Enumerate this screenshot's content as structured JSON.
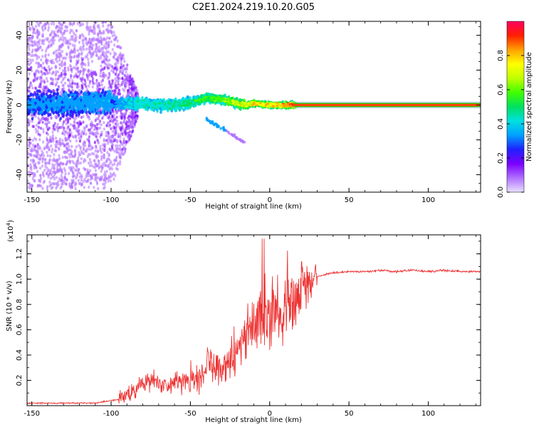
{
  "figure_title": "C2E1.2024.219.10.20.G05",
  "chart_data": [
    {
      "type": "heatmap",
      "xlabel": "Height of straight line (km)",
      "ylabel": "Frequency (Hz)",
      "xlim": [
        -153,
        133
      ],
      "ylim": [
        -50,
        48
      ],
      "xticks": [
        -150,
        -100,
        -50,
        0,
        50,
        100
      ],
      "yticks": [
        -40,
        -20,
        0,
        20,
        40
      ],
      "colorbar": {
        "label": "Normalized spectral amplitude",
        "range": [
          0,
          1
        ],
        "ticks": [
          "0.0",
          "0.2",
          "0.4",
          "0.6",
          "0.8"
        ],
        "colors": [
          "#e8e0ff",
          "#b070ff",
          "#7a00ff",
          "#2020ff",
          "#00a0ff",
          "#00e0e0",
          "#00e060",
          "#40ff00",
          "#c0ff00",
          "#ffff00",
          "#ffa000",
          "#ff2000",
          "#ff0060"
        ]
      },
      "ridge": {
        "x": [
          -150,
          -120,
          -100,
          -90,
          -80,
          -70,
          -60,
          -50,
          -40,
          -30,
          -20,
          -15,
          -10,
          0,
          10,
          15,
          133
        ],
        "frequency": [
          0,
          1,
          2,
          1,
          1,
          0,
          0,
          1,
          4,
          3,
          1,
          0,
          1,
          0,
          0,
          0,
          0
        ],
        "amplitude": [
          0.2,
          0.22,
          0.28,
          0.45,
          0.5,
          0.5,
          0.52,
          0.55,
          0.6,
          0.7,
          0.8,
          0.85,
          0.85,
          0.85,
          0.9,
          0.92,
          0.92
        ]
      }
    },
    {
      "type": "line",
      "xlabel": "Height of straight line (km)",
      "ylabel": "SNR (10 * v/v)",
      "scale_label": "(x10",
      "scale_exp": "4",
      "scale_close": ")",
      "xlim": [
        -153,
        133
      ],
      "ylim": [
        0,
        1.35
      ],
      "xticks": [
        -150,
        -100,
        -50,
        0,
        50,
        100
      ],
      "yticks": [
        "0.2",
        "0.4",
        "0.6",
        "0.8",
        "1.0",
        "1.2"
      ],
      "color": "#ee3333",
      "series": [
        {
          "x": [
            -150,
            -110,
            -100,
            -95,
            -90,
            -85,
            -80,
            -75,
            -70,
            -65,
            -60,
            -55,
            -50,
            -45,
            -40,
            -35,
            -30,
            -25,
            -20,
            -15,
            -10,
            -5,
            0,
            5,
            10,
            15,
            20,
            25,
            30,
            40,
            50,
            60,
            70,
            80,
            90,
            100,
            110,
            120,
            133
          ],
          "values": [
            0.02,
            0.02,
            0.04,
            0.05,
            0.09,
            0.14,
            0.17,
            0.2,
            0.18,
            0.16,
            0.17,
            0.2,
            0.21,
            0.25,
            0.3,
            0.33,
            0.3,
            0.37,
            0.45,
            0.55,
            0.62,
            0.68,
            0.7,
            0.72,
            0.75,
            0.8,
            0.9,
            0.98,
            1.02,
            1.05,
            1.06,
            1.06,
            1.07,
            1.06,
            1.07,
            1.06,
            1.07,
            1.06,
            1.06
          ]
        }
      ]
    }
  ]
}
